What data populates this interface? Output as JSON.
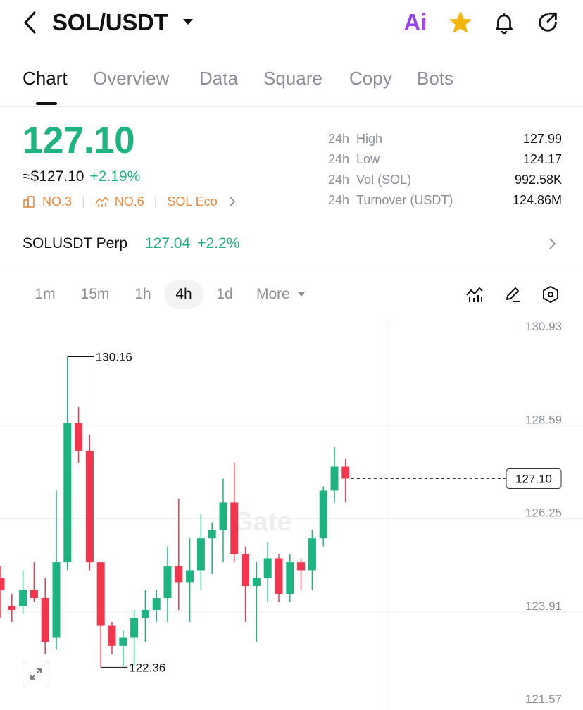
{
  "header": {
    "pair": "SOL/USDT",
    "ai_label": "Ai"
  },
  "tabs": [
    {
      "label": "Chart",
      "active": true
    },
    {
      "label": "Overview",
      "active": false
    },
    {
      "label": "Data",
      "active": false
    },
    {
      "label": "Square",
      "active": false
    },
    {
      "label": "Copy",
      "active": false
    },
    {
      "label": "Bots",
      "active": false
    }
  ],
  "price": {
    "last": "127.10",
    "approx": "≈$127.10",
    "change_pct": "+2.19%",
    "color_up": "#1db482",
    "color_down": "#f0374e",
    "rank1": "NO.3",
    "rank2": "NO.6",
    "eco": "SOL Eco"
  },
  "stats": [
    {
      "pre": "24h",
      "label": "High",
      "value": "127.99"
    },
    {
      "pre": "24h",
      "label": "Low",
      "value": "124.17"
    },
    {
      "pre": "24h",
      "label": "Vol (SOL)",
      "value": "992.58K"
    },
    {
      "pre": "24h",
      "label": "Turnover (USDT)",
      "value": "124.86M"
    }
  ],
  "perp": {
    "name": "SOLUSDT Perp",
    "price": "127.04",
    "change": "+2.2%"
  },
  "intervals": [
    {
      "label": "1m",
      "active": false
    },
    {
      "label": "15m",
      "active": false
    },
    {
      "label": "1h",
      "active": false
    },
    {
      "label": "4h",
      "active": true
    },
    {
      "label": "1d",
      "active": false
    },
    {
      "label": "More",
      "active": false
    }
  ],
  "watermark": "Gate",
  "chart_data": {
    "type": "candlestick",
    "interval": "4h",
    "y_ticks": [
      130.93,
      128.59,
      126.25,
      123.91,
      121.57
    ],
    "current_price_label": "127.10",
    "max_label": "130.16",
    "min_label": "122.36",
    "grid": true,
    "candles": [
      {
        "o": 124.6,
        "h": 124.9,
        "l": 123.6,
        "c": 124.3
      },
      {
        "o": 123.9,
        "h": 124.2,
        "l": 123.5,
        "c": 123.8
      },
      {
        "o": 123.9,
        "h": 124.8,
        "l": 123.7,
        "c": 124.3
      },
      {
        "o": 124.3,
        "h": 125.0,
        "l": 124.0,
        "c": 124.1
      },
      {
        "o": 124.1,
        "h": 124.6,
        "l": 122.7,
        "c": 123.0
      },
      {
        "o": 123.1,
        "h": 126.8,
        "l": 122.8,
        "c": 125.0
      },
      {
        "o": 125.0,
        "h": 130.16,
        "l": 124.8,
        "c": 128.5
      },
      {
        "o": 128.5,
        "h": 128.9,
        "l": 127.5,
        "c": 127.8
      },
      {
        "o": 127.8,
        "h": 128.2,
        "l": 124.8,
        "c": 125.0
      },
      {
        "o": 125.0,
        "h": 125.0,
        "l": 122.36,
        "c": 123.4
      },
      {
        "o": 123.4,
        "h": 123.5,
        "l": 122.7,
        "c": 122.9
      },
      {
        "o": 122.9,
        "h": 123.3,
        "l": 122.4,
        "c": 123.1
      },
      {
        "o": 123.1,
        "h": 123.8,
        "l": 122.4,
        "c": 123.6
      },
      {
        "o": 123.6,
        "h": 124.3,
        "l": 123.0,
        "c": 123.8
      },
      {
        "o": 123.8,
        "h": 124.3,
        "l": 123.5,
        "c": 124.1
      },
      {
        "o": 124.1,
        "h": 125.4,
        "l": 123.5,
        "c": 124.9
      },
      {
        "o": 124.9,
        "h": 126.6,
        "l": 123.8,
        "c": 124.5
      },
      {
        "o": 124.5,
        "h": 125.6,
        "l": 123.5,
        "c": 124.8
      },
      {
        "o": 124.8,
        "h": 126.2,
        "l": 124.3,
        "c": 125.6
      },
      {
        "o": 125.6,
        "h": 126.0,
        "l": 124.7,
        "c": 125.8
      },
      {
        "o": 125.8,
        "h": 127.1,
        "l": 125.0,
        "c": 126.5
      },
      {
        "o": 126.5,
        "h": 127.5,
        "l": 125.0,
        "c": 125.2
      },
      {
        "o": 125.2,
        "h": 125.4,
        "l": 123.5,
        "c": 124.4
      },
      {
        "o": 124.4,
        "h": 125.0,
        "l": 123.0,
        "c": 124.6
      },
      {
        "o": 124.6,
        "h": 125.5,
        "l": 124.0,
        "c": 125.1
      },
      {
        "o": 125.1,
        "h": 125.2,
        "l": 124.0,
        "c": 124.2
      },
      {
        "o": 124.2,
        "h": 125.2,
        "l": 124.0,
        "c": 125.0
      },
      {
        "o": 125.0,
        "h": 125.1,
        "l": 124.3,
        "c": 124.8
      },
      {
        "o": 124.8,
        "h": 125.8,
        "l": 124.3,
        "c": 125.6
      },
      {
        "o": 125.6,
        "h": 126.9,
        "l": 125.4,
        "c": 126.8
      },
      {
        "o": 126.8,
        "h": 127.9,
        "l": 126.5,
        "c": 127.4
      },
      {
        "o": 127.4,
        "h": 127.6,
        "l": 126.5,
        "c": 127.1
      }
    ]
  }
}
